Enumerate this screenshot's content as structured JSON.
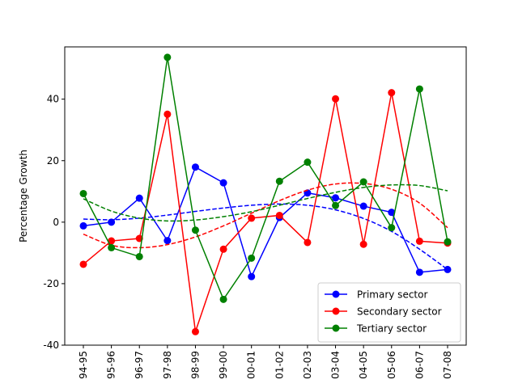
{
  "chart_data": {
    "type": "line",
    "title": "",
    "xlabel": "",
    "ylabel": "Percentage Growth",
    "categories": [
      "94-95",
      "95-96",
      "96-97",
      "97-98",
      "98-99",
      "99-00",
      "00-01",
      "01-02",
      "02-03",
      "03-04",
      "04-05",
      "05-06",
      "06-07",
      "07-08"
    ],
    "ylim": [
      -40,
      57
    ],
    "yticks": [
      -40,
      -20,
      0,
      20,
      40
    ],
    "grid": false,
    "legend_position": "lower-right",
    "series": [
      {
        "name": "Primary sector",
        "color": "#0000ff",
        "values": [
          -1.2,
          0,
          7.8,
          -6,
          17.9,
          12.8,
          -17.7,
          1.5,
          9.5,
          7.9,
          5.2,
          3.2,
          -16.3,
          -15.4
        ],
        "trend": [
          1,
          0.8,
          1.3,
          2.3,
          3.5,
          4.6,
          5.5,
          5.9,
          5.5,
          4.0,
          1.2,
          -3.0,
          -8.8,
          -15.4
        ]
      },
      {
        "name": "Secondary sector",
        "color": "#ff0000",
        "values": [
          -13.7,
          -6.1,
          -5.3,
          35.1,
          -35.6,
          -8.8,
          1.3,
          2.2,
          -6.6,
          40.1,
          -7.2,
          42.1,
          -6.2,
          -6.8
        ],
        "trend": [
          -3.9,
          -7.5,
          -8.3,
          -7.3,
          -4.8,
          -1.2,
          2.9,
          7.0,
          10.4,
          12.4,
          12.6,
          10.7,
          6.2,
          -1.8
        ]
      },
      {
        "name": "Tertiary sector",
        "color": "#008000",
        "values": [
          9.3,
          -8.3,
          -11.2,
          53.6,
          -2.6,
          -25.1,
          -11.7,
          13.3,
          19.5,
          5.4,
          13.1,
          -1.8,
          43.3,
          -6.4
        ],
        "trend": [
          7.6,
          3.6,
          1.3,
          0.4,
          0.7,
          1.8,
          3.4,
          5.5,
          7.7,
          9.7,
          11.3,
          12.1,
          11.9,
          10.2
        ]
      }
    ]
  }
}
